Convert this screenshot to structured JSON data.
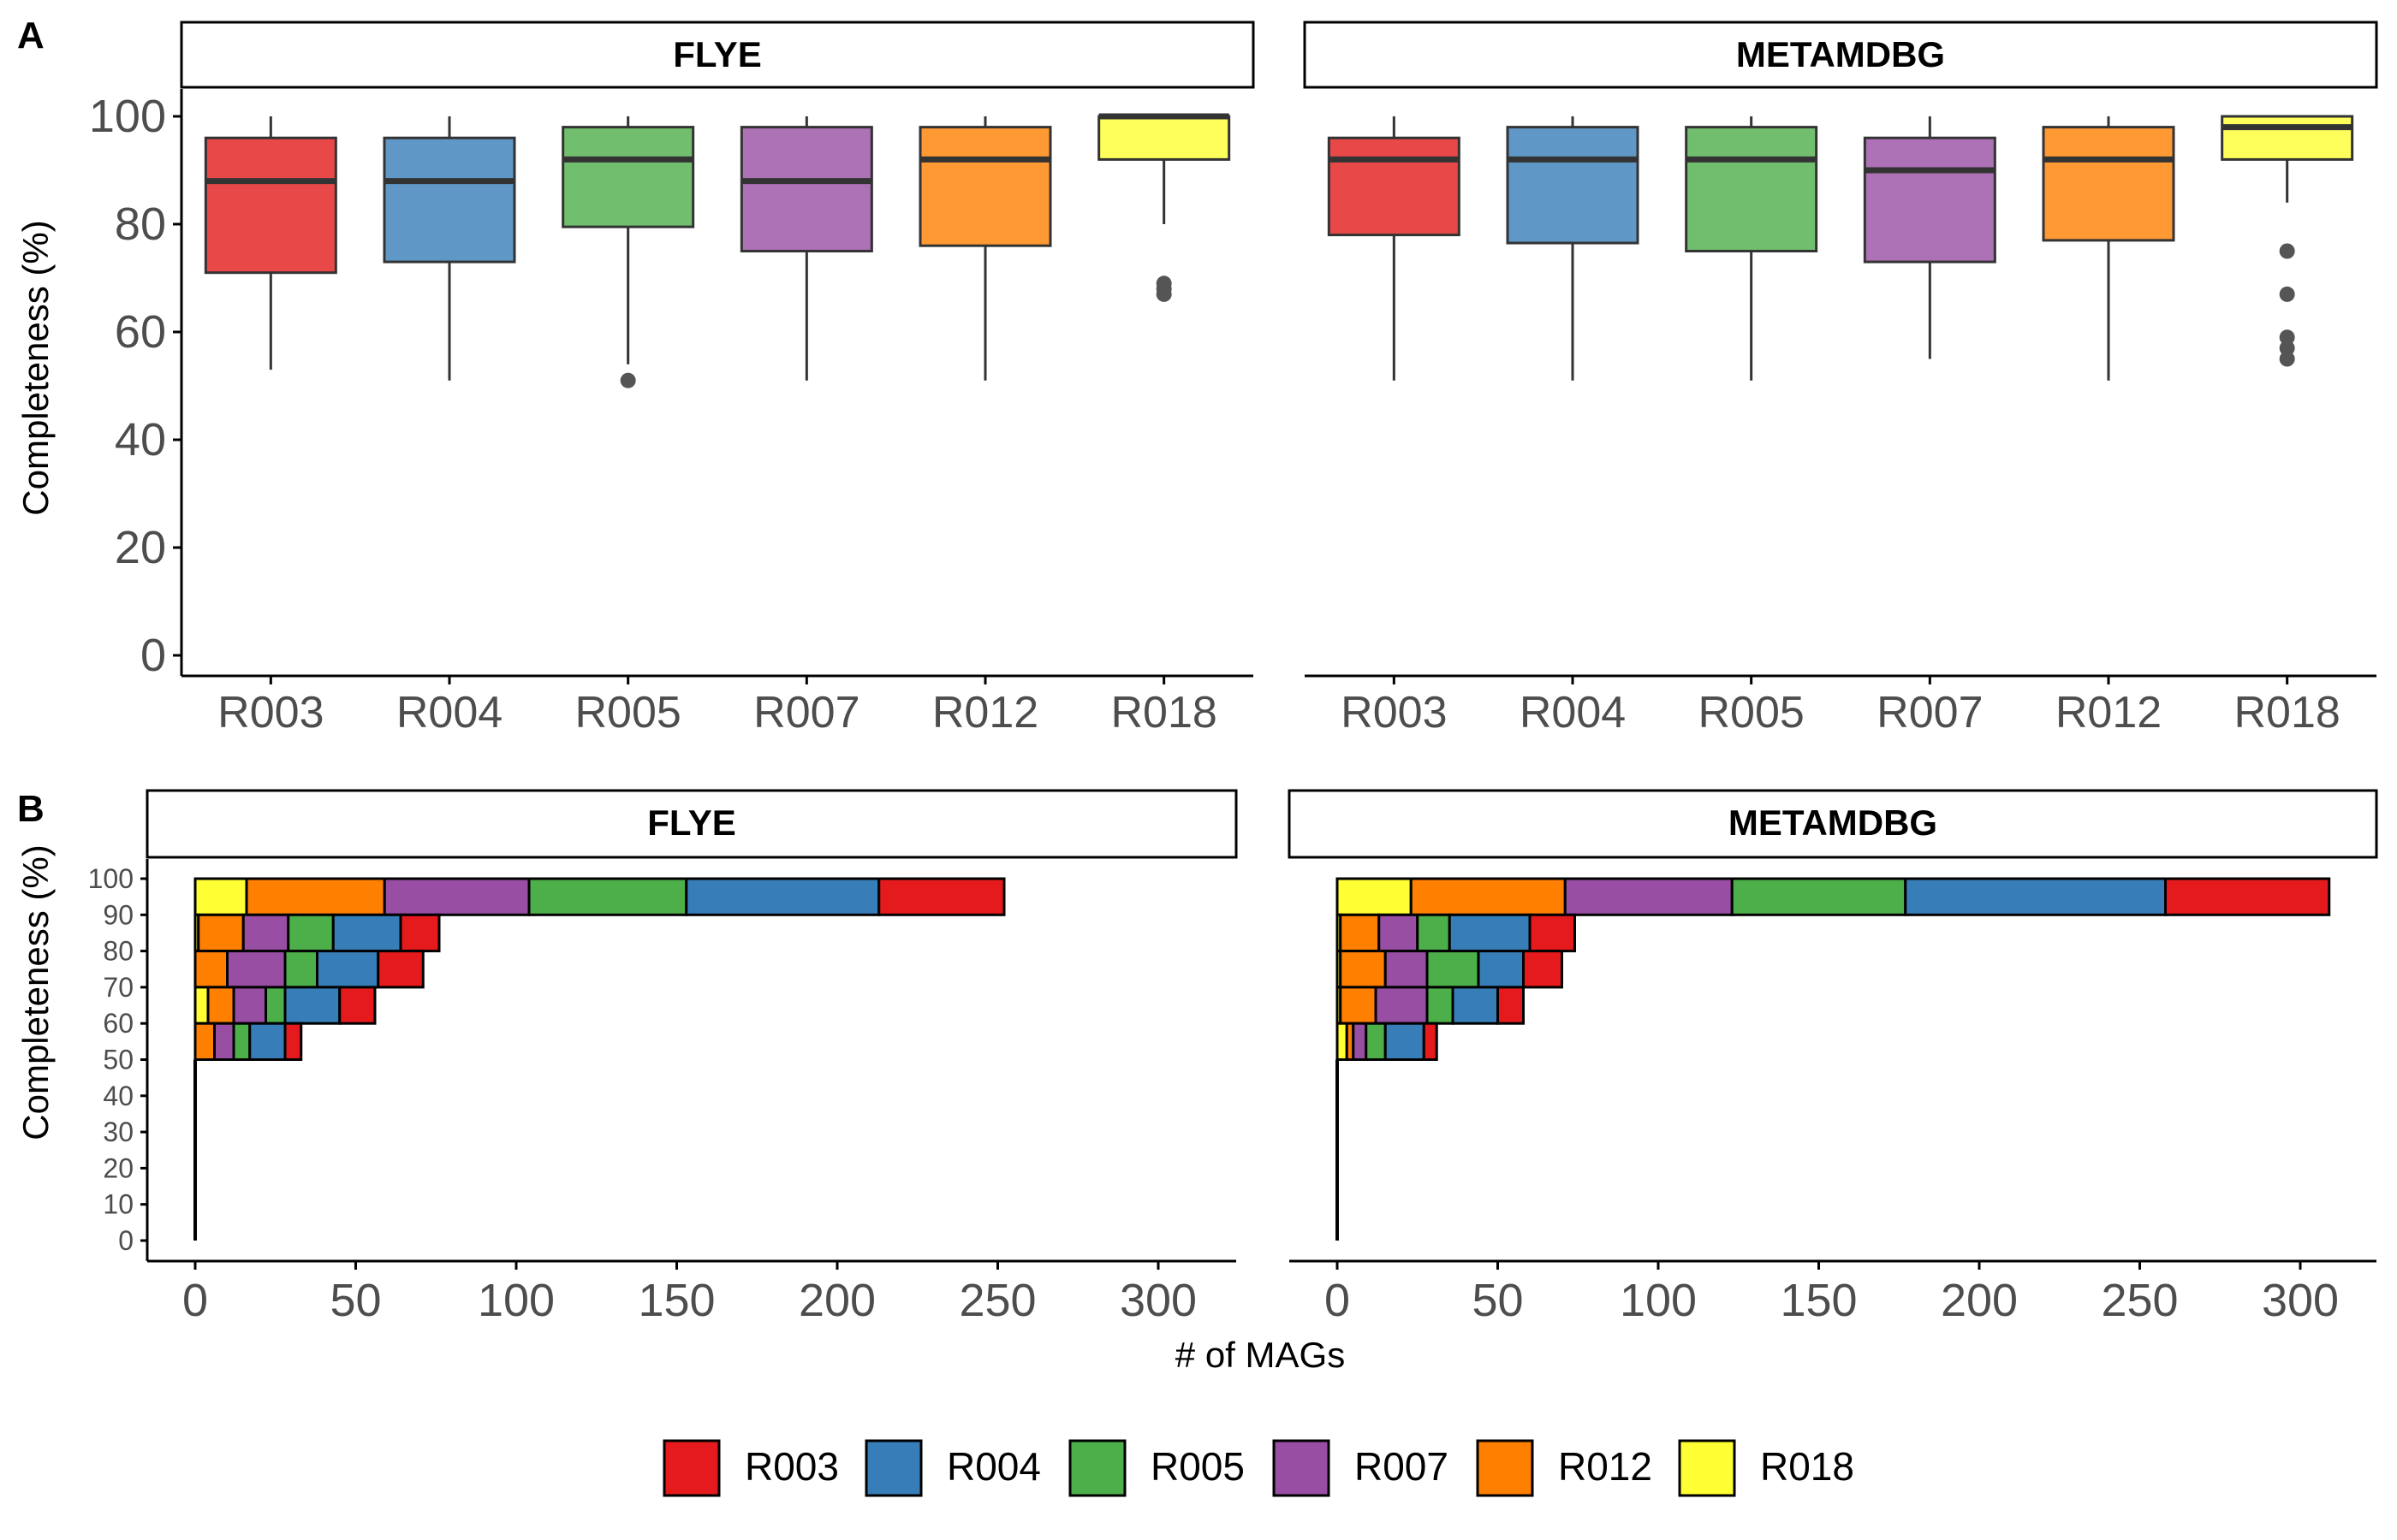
{
  "colors": {
    "R003": "#E41A1C",
    "R004": "#377EB8",
    "R005": "#4DAF4A",
    "R007": "#984EA3",
    "R012": "#FF7F00",
    "R018": "#FFFF33",
    "outlier": "#555555",
    "axis_text": "#4d4d4d"
  },
  "panel_labels": {
    "a": "A",
    "b": "B"
  },
  "legend": [
    "R003",
    "R004",
    "R005",
    "R007",
    "R012",
    "R018"
  ],
  "chart_data": [
    {
      "type": "boxplot",
      "panel": "A",
      "ylabel": "Completeness (%)",
      "ylim": [
        0,
        100
      ],
      "yticks": [
        0,
        20,
        40,
        60,
        80,
        100
      ],
      "categories": [
        "R003",
        "R004",
        "R005",
        "R007",
        "R012",
        "R018"
      ],
      "facets": [
        {
          "name": "FLYE",
          "boxes": [
            {
              "group": "R003",
              "min": 53,
              "q1": 71,
              "median": 88,
              "q3": 96,
              "max": 100,
              "outliers": []
            },
            {
              "group": "R004",
              "min": 51,
              "q1": 73,
              "median": 88,
              "q3": 96,
              "max": 100,
              "outliers": []
            },
            {
              "group": "R005",
              "min": 54,
              "q1": 79.5,
              "median": 92,
              "q3": 98,
              "max": 100,
              "outliers": [
                51
              ]
            },
            {
              "group": "R007",
              "min": 51,
              "q1": 75,
              "median": 88,
              "q3": 98,
              "max": 100,
              "outliers": []
            },
            {
              "group": "R012",
              "min": 51,
              "q1": 76,
              "median": 92,
              "q3": 98,
              "max": 100,
              "outliers": []
            },
            {
              "group": "R018",
              "min": 80,
              "q1": 92,
              "median": 100,
              "q3": 100,
              "max": 100,
              "outliers": [
                69,
                68,
                67
              ]
            }
          ]
        },
        {
          "name": "METAMDBG",
          "boxes": [
            {
              "group": "R003",
              "min": 51,
              "q1": 78,
              "median": 92,
              "q3": 96,
              "max": 100,
              "outliers": []
            },
            {
              "group": "R004",
              "min": 51,
              "q1": 76.5,
              "median": 92,
              "q3": 98,
              "max": 100,
              "outliers": []
            },
            {
              "group": "R005",
              "min": 51,
              "q1": 75,
              "median": 92,
              "q3": 98,
              "max": 100,
              "outliers": []
            },
            {
              "group": "R007",
              "min": 55,
              "q1": 73,
              "median": 90,
              "q3": 96,
              "max": 100,
              "outliers": []
            },
            {
              "group": "R012",
              "min": 51,
              "q1": 77,
              "median": 92,
              "q3": 98,
              "max": 100,
              "outliers": []
            },
            {
              "group": "R018",
              "min": 84,
              "q1": 92,
              "median": 98,
              "q3": 100,
              "max": 100,
              "outliers": [
                75,
                67,
                59,
                57,
                55
              ]
            }
          ]
        }
      ]
    },
    {
      "type": "stacked-bar-horizontal",
      "panel": "B",
      "ylabel": "Completeness (%)",
      "xlabel": "# of MAGs",
      "xlim": [
        0,
        325
      ],
      "xticks": [
        0,
        50,
        100,
        150,
        200,
        250,
        300
      ],
      "ybins": [
        "0",
        "10",
        "20",
        "30",
        "40",
        "50",
        "60",
        "70",
        "80",
        "90",
        "100"
      ],
      "stack_order": [
        "R018",
        "R012",
        "R007",
        "R005",
        "R004",
        "R003"
      ],
      "facets": [
        {
          "name": "FLYE",
          "rows": [
            {
              "bin": "90",
              "counts": {
                "R018": 16,
                "R012": 43,
                "R007": 45,
                "R005": 49,
                "R004": 60,
                "R003": 39
              }
            },
            {
              "bin": "80",
              "counts": {
                "R018": 1,
                "R012": 14,
                "R007": 14,
                "R005": 14,
                "R004": 21,
                "R003": 12
              }
            },
            {
              "bin": "70",
              "counts": {
                "R018": 0,
                "R012": 10,
                "R007": 18,
                "R005": 10,
                "R004": 19,
                "R003": 14
              }
            },
            {
              "bin": "60",
              "counts": {
                "R018": 4,
                "R012": 8,
                "R007": 10,
                "R005": 6,
                "R004": 17,
                "R003": 11
              }
            },
            {
              "bin": "50",
              "counts": {
                "R018": 0,
                "R012": 6,
                "R007": 6,
                "R005": 5,
                "R004": 11,
                "R003": 5
              }
            }
          ]
        },
        {
          "name": "METAMDBG",
          "rows": [
            {
              "bin": "90",
              "counts": {
                "R018": 23,
                "R012": 48,
                "R007": 52,
                "R005": 54,
                "R004": 81,
                "R003": 51
              }
            },
            {
              "bin": "80",
              "counts": {
                "R018": 1,
                "R012": 12,
                "R007": 12,
                "R005": 10,
                "R004": 25,
                "R003": 14
              }
            },
            {
              "bin": "70",
              "counts": {
                "R018": 1,
                "R012": 14,
                "R007": 13,
                "R005": 16,
                "R004": 14,
                "R003": 12
              }
            },
            {
              "bin": "60",
              "counts": {
                "R018": 1,
                "R012": 11,
                "R007": 16,
                "R005": 8,
                "R004": 14,
                "R003": 8
              }
            },
            {
              "bin": "50",
              "counts": {
                "R018": 3,
                "R012": 2,
                "R007": 4,
                "R005": 6,
                "R004": 12,
                "R003": 4
              }
            }
          ]
        }
      ]
    }
  ]
}
